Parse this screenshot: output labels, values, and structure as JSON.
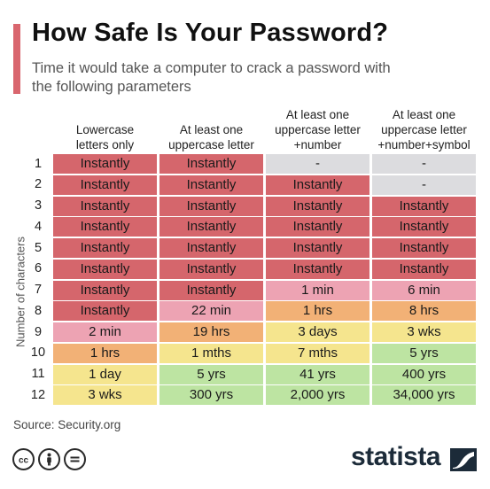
{
  "header": {
    "title": "How Safe Is Your Password?",
    "subtitle": "Time it would take a computer to crack a password with the following parameters"
  },
  "chart_data": {
    "type": "table",
    "title": "How Safe Is Your Password?",
    "subtitle": "Time it would take a computer to crack a password with the following parameters",
    "ylabel": "Number of characters",
    "columns": [
      "Lowercase\nletters only",
      "At least one\nuppercase letter",
      "At least one\nuppercase letter\n+number",
      "At least one\nuppercase letter\n+number+symbol"
    ],
    "rows": [
      "1",
      "2",
      "3",
      "4",
      "5",
      "6",
      "7",
      "8",
      "9",
      "10",
      "11",
      "12"
    ],
    "cells": [
      [
        "Instantly",
        "Instantly",
        "-",
        "-"
      ],
      [
        "Instantly",
        "Instantly",
        "Instantly",
        "-"
      ],
      [
        "Instantly",
        "Instantly",
        "Instantly",
        "Instantly"
      ],
      [
        "Instantly",
        "Instantly",
        "Instantly",
        "Instantly"
      ],
      [
        "Instantly",
        "Instantly",
        "Instantly",
        "Instantly"
      ],
      [
        "Instantly",
        "Instantly",
        "Instantly",
        "Instantly"
      ],
      [
        "Instantly",
        "Instantly",
        "1 min",
        "6 min"
      ],
      [
        "Instantly",
        "22 min",
        "1 hrs",
        "8 hrs"
      ],
      [
        "2 min",
        "19 hrs",
        "3 days",
        "3 wks"
      ],
      [
        "1 hrs",
        "1 mths",
        "7 mths",
        "5 yrs"
      ],
      [
        "1 day",
        "5 yrs",
        "41 yrs",
        "400 yrs"
      ],
      [
        "3 wks",
        "300 yrs",
        "2,000 yrs",
        "34,000 yrs"
      ]
    ],
    "cell_colors": [
      [
        "red",
        "red",
        "gray",
        "gray"
      ],
      [
        "red",
        "red",
        "red",
        "gray"
      ],
      [
        "red",
        "red",
        "red",
        "red"
      ],
      [
        "red",
        "red",
        "red",
        "red"
      ],
      [
        "red",
        "red",
        "red",
        "red"
      ],
      [
        "red",
        "red",
        "red",
        "red"
      ],
      [
        "red",
        "red",
        "pink",
        "pink"
      ],
      [
        "red",
        "pink",
        "orange",
        "orange"
      ],
      [
        "pink",
        "orange",
        "yellow",
        "yellow"
      ],
      [
        "orange",
        "yellow",
        "yellow",
        "green"
      ],
      [
        "yellow",
        "green",
        "green",
        "green"
      ],
      [
        "yellow",
        "green",
        "green",
        "green"
      ]
    ],
    "palette": {
      "red": "#d5666c",
      "pink": "#eda3b3",
      "orange": "#f2b176",
      "yellow": "#f5e58e",
      "green": "#bde4a2",
      "gray": "#dcdcdf"
    }
  },
  "footer": {
    "source": "Source: Security.org",
    "brand": "statista",
    "license_icons": [
      "cc-icon",
      "attribution-icon",
      "no-derivatives-icon"
    ]
  },
  "colors": {
    "accent": "#d9666e",
    "brand": "#1c2b39"
  }
}
